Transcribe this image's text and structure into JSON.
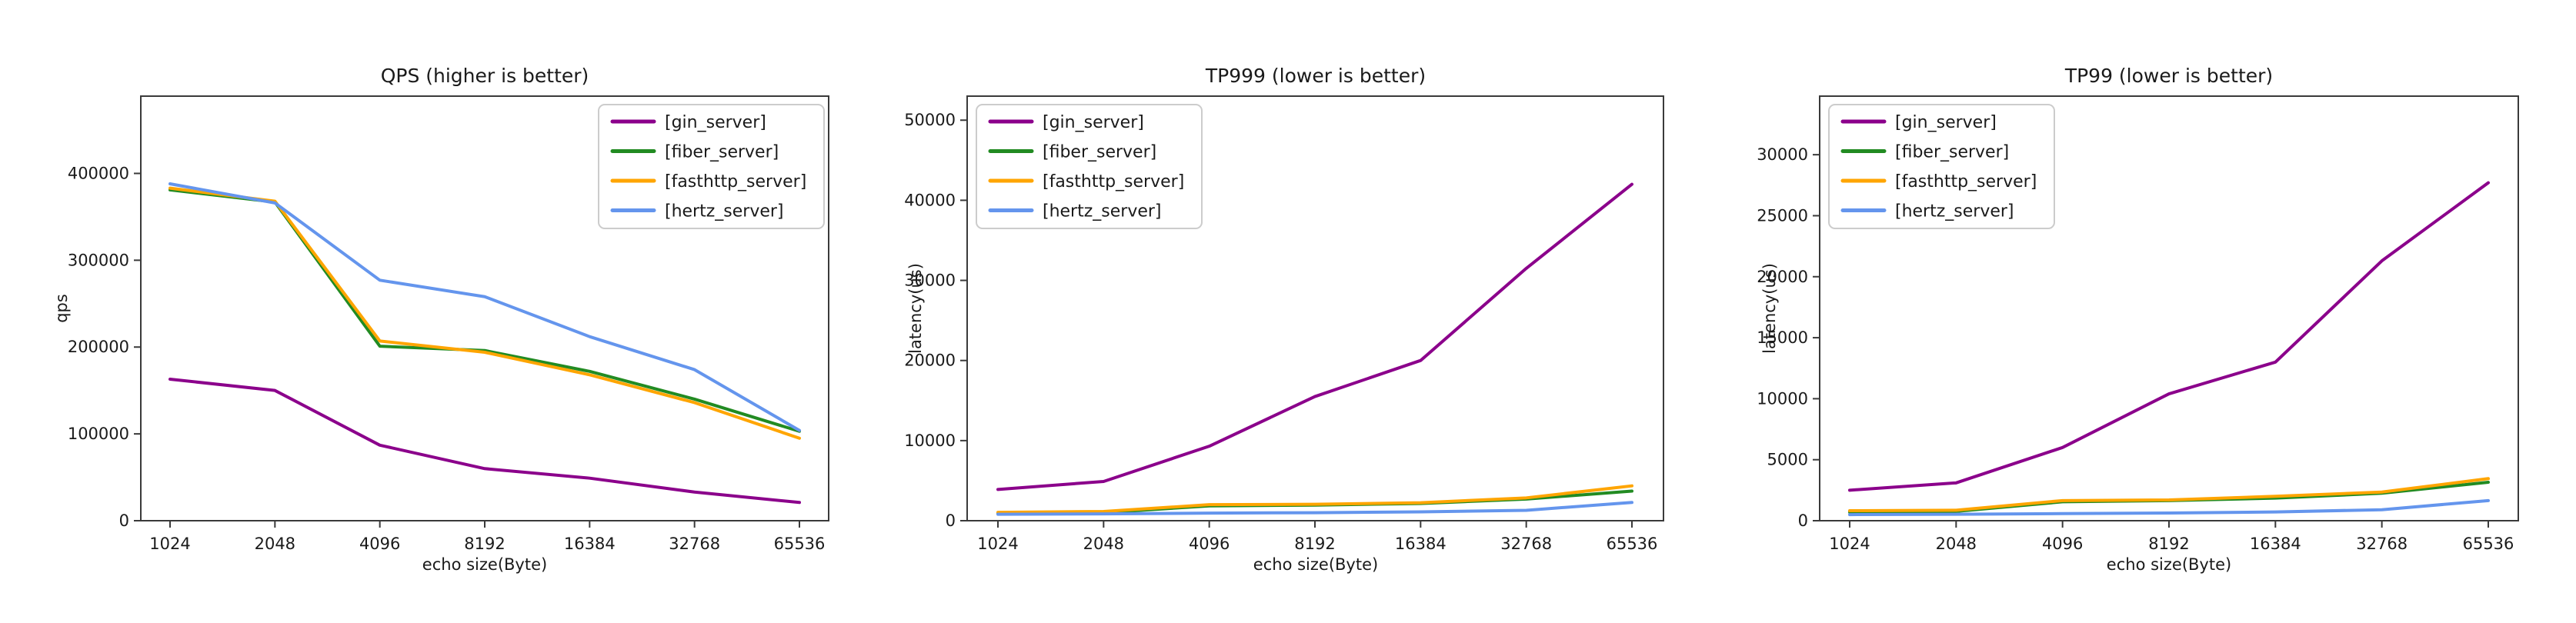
{
  "figure_style": {
    "background": "#ffffff",
    "text_color": "#1a1a1a",
    "frame_color": "#3a3a3a",
    "legend_border_color": "#cccccc",
    "legend_background": "#ffffff"
  },
  "chart_data": [
    {
      "type": "line",
      "title": "QPS (higher is better)",
      "xlabel": "echo size(Byte)",
      "ylabel": "qps",
      "categories": [
        1024,
        2048,
        4096,
        8192,
        16384,
        32768,
        65536
      ],
      "x_tick_labels": [
        "1024",
        "2048",
        "4096",
        "8192",
        "16384",
        "32768",
        "65536"
      ],
      "ylim": [
        0,
        489000
      ],
      "ytick_values": [
        0,
        100000,
        200000,
        300000,
        400000
      ],
      "ytick_labels": [
        "0",
        "100000",
        "200000",
        "300000",
        "400000"
      ],
      "grid": false,
      "legend_position": "upper-right",
      "series": [
        {
          "name": "[gin_server]",
          "color": "#8b008b",
          "values": [
            163000,
            150000,
            87000,
            60000,
            49000,
            33000,
            21000
          ]
        },
        {
          "name": "[fiber_server]",
          "color": "#228b22",
          "values": [
            381000,
            367000,
            201000,
            196000,
            172000,
            140000,
            103000
          ]
        },
        {
          "name": "[fasthttp_server]",
          "color": "#ffa500",
          "values": [
            383000,
            368000,
            207000,
            194000,
            168000,
            136000,
            95000
          ]
        },
        {
          "name": "[hertz_server]",
          "color": "#6495ed",
          "values": [
            388000,
            366000,
            277000,
            258000,
            212000,
            174000,
            104000
          ]
        }
      ]
    },
    {
      "type": "line",
      "title": "TP999 (lower is better)",
      "xlabel": "echo size(Byte)",
      "ylabel": "latency(us)",
      "categories": [
        1024,
        2048,
        4096,
        8192,
        16384,
        32768,
        65536
      ],
      "x_tick_labels": [
        "1024",
        "2048",
        "4096",
        "8192",
        "16384",
        "32768",
        "65536"
      ],
      "ylim": [
        0,
        53000
      ],
      "ytick_values": [
        0,
        10000,
        20000,
        30000,
        40000,
        50000
      ],
      "ytick_labels": [
        "0",
        "10000",
        "20000",
        "30000",
        "40000",
        "50000"
      ],
      "grid": false,
      "legend_position": "upper-left",
      "series": [
        {
          "name": "[gin_server]",
          "color": "#8b008b",
          "values": [
            3900,
            4900,
            9300,
            15500,
            20000,
            31500,
            42000
          ]
        },
        {
          "name": "[fiber_server]",
          "color": "#228b22",
          "values": [
            900,
            1000,
            1850,
            1950,
            2150,
            2700,
            3700
          ]
        },
        {
          "name": "[fasthttp_server]",
          "color": "#ffa500",
          "values": [
            1050,
            1150,
            2000,
            2050,
            2250,
            2850,
            4350
          ]
        },
        {
          "name": "[hertz_server]",
          "color": "#6495ed",
          "values": [
            800,
            850,
            950,
            1000,
            1100,
            1300,
            2280
          ]
        }
      ]
    },
    {
      "type": "line",
      "title": "TP99 (lower is better)",
      "xlabel": "echo size(Byte)",
      "ylabel": "latency(us)",
      "categories": [
        1024,
        2048,
        4096,
        8192,
        16384,
        32768,
        65536
      ],
      "x_tick_labels": [
        "1024",
        "2048",
        "4096",
        "8192",
        "16384",
        "32768",
        "65536"
      ],
      "ylim": [
        0,
        34800
      ],
      "ytick_values": [
        0,
        5000,
        10000,
        15000,
        20000,
        25000,
        30000
      ],
      "ytick_labels": [
        "0",
        "5000",
        "10000",
        "15000",
        "20000",
        "25000",
        "30000"
      ],
      "grid": false,
      "legend_position": "upper-left",
      "series": [
        {
          "name": "[gin_server]",
          "color": "#8b008b",
          "values": [
            2500,
            3100,
            6000,
            10400,
            13000,
            21300,
            27700
          ]
        },
        {
          "name": "[fiber_server]",
          "color": "#228b22",
          "values": [
            700,
            760,
            1550,
            1650,
            1850,
            2250,
            3150
          ]
        },
        {
          "name": "[fasthttp_server]",
          "color": "#ffa500",
          "values": [
            820,
            860,
            1650,
            1700,
            2000,
            2350,
            3450
          ]
        },
        {
          "name": "[hertz_server]",
          "color": "#6495ed",
          "values": [
            500,
            530,
            580,
            630,
            720,
            900,
            1650
          ]
        }
      ]
    }
  ]
}
